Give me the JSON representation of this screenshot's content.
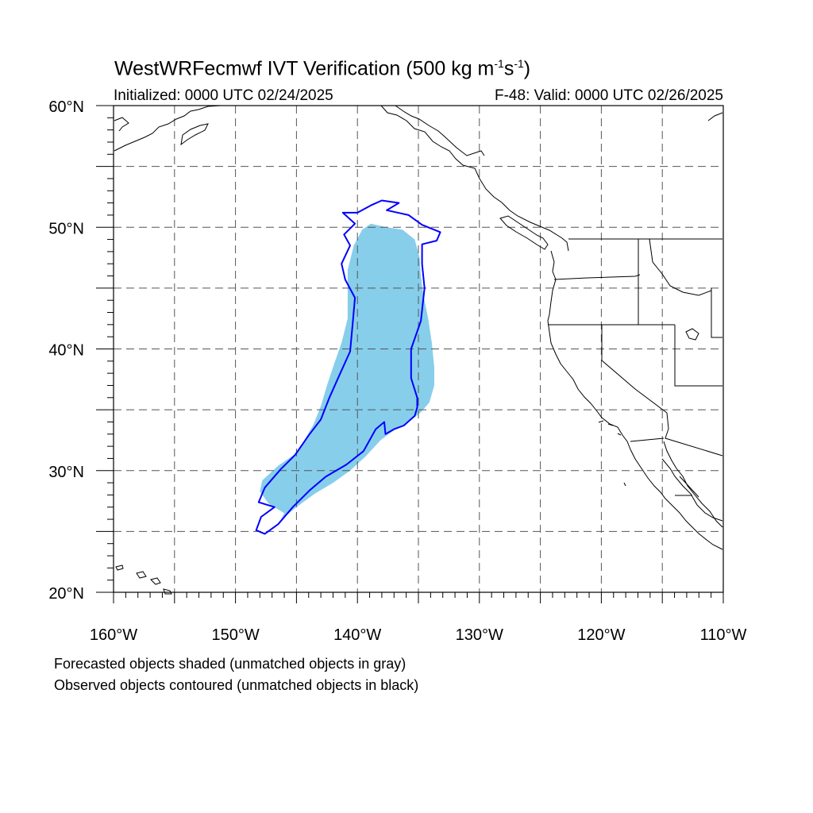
{
  "title": {
    "main": "WestWRFecmwf IVT Verification (500 kg m",
    "exp1": "-1",
    "mid": "s",
    "exp2": "-1",
    "end": ")"
  },
  "subtitle_left": "Initialized: 0000 UTC 02/24/2025",
  "subtitle_right": "F-48: Valid: 0000 UTC 02/26/2025",
  "footer": [
    "Forecasted objects shaded (unmatched objects in gray)",
    "Observed objects contoured (unmatched objects in black)"
  ],
  "map": {
    "lon_range": [
      -160,
      -110
    ],
    "lat_range": [
      20,
      60
    ],
    "lon_ticks": [
      {
        "value": -160,
        "label": "160°W"
      },
      {
        "value": -150,
        "label": "150°W"
      },
      {
        "value": -140,
        "label": "140°W"
      },
      {
        "value": -130,
        "label": "130°W"
      },
      {
        "value": -120,
        "label": "120°W"
      },
      {
        "value": -110,
        "label": "110°W"
      }
    ],
    "lat_ticks": [
      {
        "value": 60,
        "label": "60°N"
      },
      {
        "value": 50,
        "label": "50°N"
      },
      {
        "value": 40,
        "label": "40°N"
      },
      {
        "value": 30,
        "label": "30°N"
      },
      {
        "value": 20,
        "label": "20°N"
      }
    ],
    "grid_spacing_deg": 5,
    "grid_style": "dashed",
    "forecast_fill_color": "#87ceeb",
    "observed_contour_color": "#0000ff",
    "forecast_object": [
      [
        -138.9,
        50.3
      ],
      [
        -137.6,
        50.0
      ],
      [
        -136.3,
        49.8
      ],
      [
        -135.3,
        49.0
      ],
      [
        -134.9,
        47.5
      ],
      [
        -134.8,
        46.0
      ],
      [
        -134.6,
        44.5
      ],
      [
        -134.2,
        42.5
      ],
      [
        -133.9,
        40.5
      ],
      [
        -133.7,
        38.5
      ],
      [
        -133.7,
        37.0
      ],
      [
        -134.1,
        35.6
      ],
      [
        -134.8,
        34.8
      ],
      [
        -135.8,
        34.0
      ],
      [
        -136.9,
        33.4
      ],
      [
        -138.1,
        32.5
      ],
      [
        -139.3,
        31.2
      ],
      [
        -140.6,
        30.0
      ],
      [
        -142.0,
        29.0
      ],
      [
        -143.5,
        28.1
      ],
      [
        -145.0,
        27.0
      ],
      [
        -146.2,
        26.0
      ],
      [
        -146.4,
        25.7
      ],
      [
        -146.0,
        26.5
      ],
      [
        -147.3,
        27.3
      ],
      [
        -148.0,
        28.3
      ],
      [
        -147.8,
        29.2
      ],
      [
        -146.5,
        30.4
      ],
      [
        -145.2,
        31.3
      ],
      [
        -144.4,
        32.4
      ],
      [
        -143.6,
        33.8
      ],
      [
        -143.0,
        35.3
      ],
      [
        -142.5,
        37.0
      ],
      [
        -141.9,
        38.8
      ],
      [
        -141.3,
        40.5
      ],
      [
        -140.8,
        42.5
      ],
      [
        -140.8,
        44.5
      ],
      [
        -140.8,
        46.5
      ],
      [
        -140.3,
        48.5
      ],
      [
        -139.6,
        49.8
      ]
    ],
    "observed_object": [
      [
        -138.0,
        52.2
      ],
      [
        -136.6,
        52.0
      ],
      [
        -137.6,
        51.4
      ],
      [
        -135.8,
        51.0
      ],
      [
        -134.7,
        50.2
      ],
      [
        -133.2,
        49.6
      ],
      [
        -133.5,
        48.9
      ],
      [
        -134.7,
        48.6
      ],
      [
        -134.7,
        47.0
      ],
      [
        -134.5,
        45.0
      ],
      [
        -134.8,
        42.3
      ],
      [
        -135.6,
        40.0
      ],
      [
        -135.6,
        37.6
      ],
      [
        -135.1,
        36.0
      ],
      [
        -135.1,
        35.2
      ],
      [
        -135.3,
        34.5
      ],
      [
        -136.2,
        33.7
      ],
      [
        -137.0,
        33.4
      ],
      [
        -137.7,
        33.0
      ],
      [
        -137.8,
        34.0
      ],
      [
        -138.5,
        33.4
      ],
      [
        -139.5,
        31.6
      ],
      [
        -140.9,
        30.5
      ],
      [
        -142.6,
        29.5
      ],
      [
        -143.9,
        28.4
      ],
      [
        -145.3,
        27.0
      ],
      [
        -146.5,
        25.6
      ],
      [
        -147.6,
        24.8
      ],
      [
        -148.3,
        25.1
      ],
      [
        -147.9,
        26.2
      ],
      [
        -146.8,
        27.0
      ],
      [
        -148.1,
        27.4
      ],
      [
        -147.6,
        28.6
      ],
      [
        -146.3,
        30.1
      ],
      [
        -145.1,
        31.3
      ],
      [
        -144.0,
        32.9
      ],
      [
        -143.0,
        34.2
      ],
      [
        -142.3,
        36.0
      ],
      [
        -141.5,
        37.8
      ],
      [
        -140.6,
        39.8
      ],
      [
        -140.4,
        42.0
      ],
      [
        -140.2,
        44.2
      ],
      [
        -141.0,
        45.7
      ],
      [
        -141.3,
        47.0
      ],
      [
        -140.6,
        48.5
      ],
      [
        -141.1,
        49.4
      ],
      [
        -140.2,
        50.3
      ],
      [
        -141.2,
        51.2
      ],
      [
        -140.0,
        51.2
      ],
      [
        -138.9,
        51.8
      ]
    ]
  }
}
